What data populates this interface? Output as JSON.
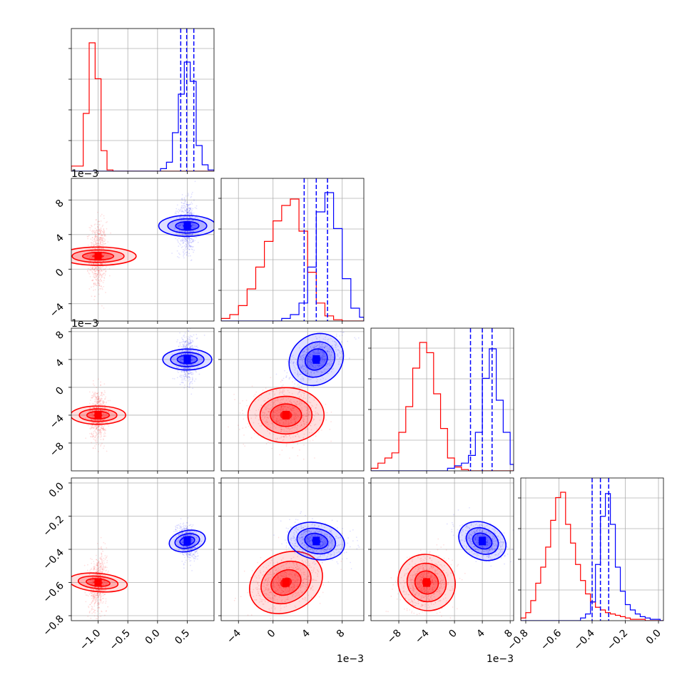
{
  "chart_data": {
    "type": "corner",
    "colors": {
      "set_a": "#ff0000",
      "set_b": "#0000ff"
    },
    "grid": true,
    "parameters": [
      {
        "range": [
          -1.45,
          0.95
        ],
        "ticks": [
          -1.0,
          -0.5,
          0.0,
          0.5
        ],
        "tick_labels": [
          "−1.0",
          "−0.5",
          "0.0",
          "0.5"
        ],
        "offset_label": ""
      },
      {
        "range": [
          -6.0,
          10.5
        ],
        "ticks": [
          -4,
          0,
          4,
          8
        ],
        "tick_labels": [
          "−4",
          "0",
          "4",
          "8"
        ],
        "offset_label": "1e−3"
      },
      {
        "range": [
          -12.0,
          8.5
        ],
        "ticks": [
          -8,
          -4,
          0,
          4,
          8
        ],
        "tick_labels": [
          "−8",
          "−4",
          "0",
          "4",
          "8"
        ],
        "offset_label": "1e−3"
      },
      {
        "range": [
          -0.83,
          0.03
        ],
        "ticks": [
          -0.8,
          -0.6,
          -0.4,
          -0.2,
          0.0
        ],
        "tick_labels": [
          "−0.8",
          "−0.6",
          "−0.4",
          "−0.2",
          "0.0"
        ],
        "offset_label": ""
      }
    ],
    "series": [
      {
        "color": "#ff0000",
        "means": [
          -1.0,
          1.5,
          -4.0,
          -0.6
        ],
        "sds": [
          0.07,
          2.0,
          1.8,
          0.08
        ],
        "corr": [
          [
            3,
            0,
            0.25
          ],
          [
            3,
            1,
            0.35
          ],
          [
            3,
            2,
            0.2
          ]
        ]
      },
      {
        "color": "#0000ff",
        "means": [
          0.5,
          5.0,
          4.0,
          -0.35
        ],
        "sds": [
          0.08,
          1.5,
          1.6,
          0.05
        ],
        "corr": [
          [
            2,
            1,
            0.5
          ],
          [
            3,
            0,
            -0.25
          ],
          [
            3,
            1,
            -0.2
          ],
          [
            3,
            2,
            -0.35
          ]
        ]
      }
    ],
    "quantile_lines": [
      [
        0.39,
        0.49,
        0.61
      ],
      [
        3.6,
        5.0,
        6.3
      ],
      [
        2.3,
        4.0,
        5.4
      ],
      [
        -0.4,
        -0.35,
        -0.3
      ]
    ],
    "diagonal_histograms": [
      {
        "edges": [
          -1.45,
          -1.35,
          -1.25,
          -1.15,
          -1.05,
          -0.95,
          -0.85,
          -0.75,
          -0.65,
          -0.55,
          -0.45,
          -0.35,
          -0.25,
          -0.15,
          -0.05,
          0.05,
          0.15,
          0.25,
          0.35,
          0.45,
          0.55,
          0.65,
          0.75,
          0.85,
          0.95
        ],
        "red": [
          0.04,
          0.04,
          0.45,
          1.0,
          0.72,
          0.16,
          0.01,
          0,
          0,
          0,
          0,
          0,
          0,
          0,
          0,
          0,
          0,
          0,
          0,
          0,
          0,
          0,
          0,
          0
        ],
        "blue": [
          0,
          0,
          0,
          0,
          0,
          0,
          0,
          0,
          0,
          0,
          0,
          0,
          0,
          0,
          0,
          0.02,
          0.07,
          0.3,
          0.6,
          0.85,
          0.7,
          0.2,
          0.05,
          0.01
        ]
      },
      {
        "edges": [
          -6.0,
          -5.0,
          -4.0,
          -3.0,
          -2.0,
          -1.0,
          0.0,
          1.0,
          2.0,
          3.0,
          4.0,
          5.0,
          6.0,
          7.0,
          8.0,
          9.0,
          10.0,
          10.5
        ],
        "red": [
          0.02,
          0.05,
          0.12,
          0.25,
          0.42,
          0.62,
          0.78,
          0.9,
          0.95,
          0.7,
          0.38,
          0.14,
          0.04,
          0.01,
          0,
          0,
          0
        ],
        "blue": [
          0,
          0,
          0,
          0,
          0,
          0,
          0,
          0.02,
          0.05,
          0.14,
          0.42,
          0.85,
          1.0,
          0.72,
          0.33,
          0.1,
          0.03
        ]
      },
      {
        "edges": [
          -12.0,
          -11.0,
          -10.0,
          -9.0,
          -8.0,
          -7.0,
          -6.0,
          -5.0,
          -4.0,
          -3.0,
          -2.0,
          -1.0,
          0.0,
          1.0,
          2.0,
          3.0,
          4.0,
          5.0,
          6.0,
          7.0,
          8.0,
          8.5
        ],
        "red": [
          0.02,
          0.06,
          0.1,
          0.14,
          0.3,
          0.5,
          0.8,
          1.0,
          0.92,
          0.6,
          0.33,
          0.1,
          0.03,
          0.01,
          0,
          0,
          0,
          0,
          0,
          0,
          0
        ],
        "blue": [
          0,
          0,
          0,
          0,
          0,
          0,
          0,
          0,
          0,
          0,
          0,
          0.02,
          0.04,
          0.06,
          0.12,
          0.3,
          0.72,
          0.95,
          0.55,
          0.3,
          0.05
        ]
      },
      {
        "edges": [
          -0.83,
          -0.8,
          -0.77,
          -0.74,
          -0.71,
          -0.68,
          -0.65,
          -0.62,
          -0.59,
          -0.56,
          -0.53,
          -0.5,
          -0.47,
          -0.44,
          -0.41,
          -0.38,
          -0.35,
          -0.32,
          -0.29,
          -0.26,
          -0.23,
          -0.2,
          -0.17,
          -0.14,
          -0.11,
          -0.08,
          -0.05,
          -0.02,
          0.01,
          0.03
        ],
        "red": [
          0.02,
          0.06,
          0.15,
          0.28,
          0.4,
          0.55,
          0.75,
          0.92,
          0.96,
          0.72,
          0.58,
          0.42,
          0.3,
          0.2,
          0.14,
          0.1,
          0.08,
          0.06,
          0.05,
          0.04,
          0.03,
          0.02,
          0.01,
          0.01,
          0.01,
          0,
          0,
          0,
          0
        ],
        "blue": [
          0,
          0,
          0,
          0,
          0,
          0,
          0,
          0,
          0,
          0,
          0,
          0,
          0.02,
          0.05,
          0.14,
          0.42,
          0.78,
          0.95,
          0.72,
          0.4,
          0.22,
          0.12,
          0.08,
          0.05,
          0.03,
          0.02,
          0.01,
          0.01,
          0
        ]
      }
    ]
  }
}
